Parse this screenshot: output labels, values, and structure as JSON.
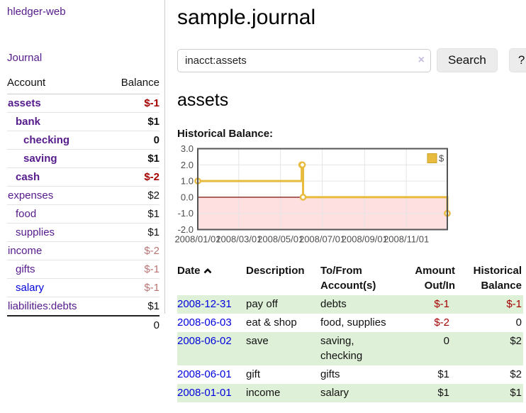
{
  "app": {
    "title": "hledger-web",
    "nav_journal": "Journal"
  },
  "sidebar": {
    "header": {
      "account": "Account",
      "balance": "Balance"
    },
    "accounts": [
      {
        "name": "assets",
        "depth": 1,
        "bold": true,
        "balance": "$-1",
        "bal_style": "neg"
      },
      {
        "name": "bank",
        "depth": 2,
        "bold": true,
        "balance": "$1",
        "bal_style": ""
      },
      {
        "name": "checking",
        "depth": 3,
        "bold": true,
        "balance": "0",
        "bal_style": ""
      },
      {
        "name": "saving",
        "depth": 3,
        "bold": true,
        "balance": "$1",
        "bal_style": ""
      },
      {
        "name": "cash",
        "depth": 2,
        "bold": true,
        "balance": "$-2",
        "bal_style": "neg"
      },
      {
        "name": "expenses",
        "depth": 1,
        "bold": false,
        "balance": "$2",
        "bal_style": ""
      },
      {
        "name": "food",
        "depth": 2,
        "bold": false,
        "balance": "$1",
        "bal_style": ""
      },
      {
        "name": "supplies",
        "depth": 2,
        "bold": false,
        "balance": "$1",
        "bal_style": ""
      },
      {
        "name": "income",
        "depth": 1,
        "bold": false,
        "balance": "$-2",
        "bal_style": "dimneg"
      },
      {
        "name": "gifts",
        "depth": 2,
        "bold": false,
        "balance": "$-1",
        "bal_style": "dimneg"
      },
      {
        "name": "salary",
        "depth": 2,
        "bold": false,
        "balance": "$-1",
        "bal_style": "dimneg",
        "link_color": "blue"
      },
      {
        "name": "liabilities:debts",
        "depth": 1,
        "bold": false,
        "balance": "$1",
        "bal_style": ""
      }
    ],
    "total": "0"
  },
  "header": {
    "title": "sample.journal"
  },
  "search": {
    "value": "inacct:assets",
    "clear_icon": "×",
    "button_label": "Search",
    "help_label": "?"
  },
  "main": {
    "account_heading": "assets",
    "chart_label": "Historical Balance:"
  },
  "chart_data": {
    "type": "line",
    "title": "Historical Balance",
    "step": true,
    "series": [
      {
        "name": "$",
        "color": "#e8bb3f",
        "marker_border": "#d9a821",
        "points": [
          [
            "2008-01-01",
            1
          ],
          [
            "2008-06-01",
            2
          ],
          [
            "2008-06-02",
            2
          ],
          [
            "2008-06-03",
            0
          ],
          [
            "2008-12-31",
            -1
          ]
        ]
      }
    ],
    "xrange": [
      "2008-01-01",
      "2008-12-31"
    ],
    "ylim": [
      -2,
      3
    ],
    "yticks": [
      "3.0",
      "2.0",
      "1.0",
      "0.0",
      "-1.0",
      "-2.0"
    ],
    "ytick_values": [
      3,
      2,
      1,
      0,
      -1,
      -2
    ],
    "xticks": [
      "2008/01/01",
      "2008/03/01",
      "2008/05/01",
      "2008/07/01",
      "2008/09/01",
      "2008/11/01"
    ],
    "grid": true,
    "grid_color": "#e5e5e5",
    "border_color": "#545454",
    "negative_fill": "rgba(255,0,0,0.12)",
    "zero_line_color": "#8b1f1f",
    "legend": {
      "label": "$",
      "position": "top-right",
      "swatch_color": "#e8bb3f",
      "swatch_border": "#c9a227"
    }
  },
  "transactions": {
    "headers": {
      "date": "Date",
      "sort_icon": "caret-up",
      "description": "Description",
      "tofrom": "To/From Account(s)",
      "amount": "Amount Out/In",
      "balance": "Historical Balance"
    },
    "rows": [
      {
        "date": "2008-12-31",
        "description": "pay off",
        "tofrom": "debts",
        "amount": "$-1",
        "amount_style": "neg",
        "balance": "$-1",
        "balance_style": "neg",
        "shade": true
      },
      {
        "date": "2008-06-03",
        "description": "eat & shop",
        "tofrom": "food, supplies",
        "amount": "$-2",
        "amount_style": "neg",
        "balance": "0",
        "balance_style": "",
        "shade": false
      },
      {
        "date": "2008-06-02",
        "description": "save",
        "tofrom": "saving, checking",
        "amount": "0",
        "amount_style": "",
        "balance": "$2",
        "balance_style": "",
        "shade": true
      },
      {
        "date": "2008-06-01",
        "description": "gift",
        "tofrom": "gifts",
        "amount": "$1",
        "amount_style": "",
        "balance": "$2",
        "balance_style": "",
        "shade": false
      },
      {
        "date": "2008-01-01",
        "description": "income",
        "tofrom": "salary",
        "amount": "$1",
        "amount_style": "",
        "balance": "$1",
        "balance_style": "",
        "shade": true
      }
    ]
  }
}
